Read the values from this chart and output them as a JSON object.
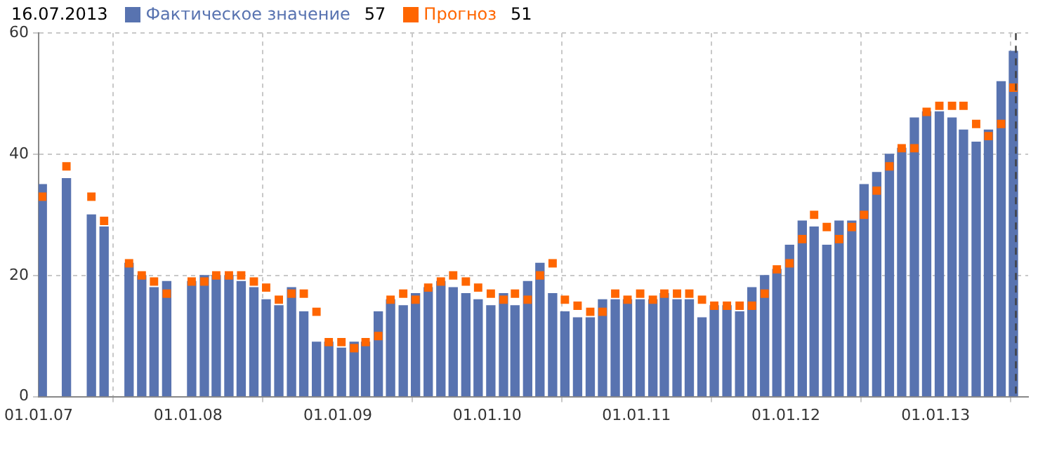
{
  "chart_data": {
    "type": "bar",
    "title": "16.07.2013",
    "x": [
      "2007-01-10",
      "2007-03-10",
      "2007-05-10",
      "2007-06-10",
      "2007-08-10",
      "2007-09-10",
      "2007-10-10",
      "2007-11-10",
      "2008-01-10",
      "2008-02-10",
      "2008-03-10",
      "2008-04-10",
      "2008-05-10",
      "2008-06-10",
      "2008-07-10",
      "2008-08-10",
      "2008-09-10",
      "2008-10-10",
      "2008-11-10",
      "2008-12-10",
      "2009-01-10",
      "2009-02-10",
      "2009-03-10",
      "2009-04-10",
      "2009-05-10",
      "2009-06-10",
      "2009-07-10",
      "2009-08-10",
      "2009-09-10",
      "2009-10-10",
      "2009-11-10",
      "2009-12-10",
      "2010-01-10",
      "2010-02-10",
      "2010-03-10",
      "2010-04-10",
      "2010-05-10",
      "2010-06-10",
      "2010-07-10",
      "2010-08-10",
      "2010-09-10",
      "2010-10-10",
      "2010-11-10",
      "2010-12-10",
      "2011-01-10",
      "2011-02-10",
      "2011-03-10",
      "2011-04-10",
      "2011-05-10",
      "2011-06-10",
      "2011-07-10",
      "2011-08-10",
      "2011-09-10",
      "2011-10-10",
      "2011-11-10",
      "2011-12-10",
      "2012-01-10",
      "2012-02-10",
      "2012-03-10",
      "2012-04-10",
      "2012-05-10",
      "2012-06-10",
      "2012-07-10",
      "2012-08-10",
      "2012-09-10",
      "2012-10-10",
      "2012-11-10",
      "2012-12-10",
      "2013-01-10",
      "2013-02-10",
      "2013-03-10",
      "2013-04-10",
      "2013-05-10",
      "2013-06-10",
      "2013-07-10"
    ],
    "series": [
      {
        "name": "Фактическое значение",
        "color": "#5873b0",
        "values": [
          35,
          36,
          30,
          28,
          22,
          20,
          18,
          19,
          19,
          20,
          20,
          20,
          19,
          18,
          16,
          15,
          18,
          14,
          9,
          9,
          8,
          9,
          9,
          14,
          16,
          15,
          17,
          18,
          19,
          18,
          17,
          16,
          15,
          17,
          15,
          19,
          22,
          17,
          14,
          13,
          13,
          16,
          16,
          16,
          16,
          16,
          17,
          16,
          16,
          13,
          15,
          15,
          14,
          18,
          20,
          21,
          25,
          29,
          28,
          25,
          29,
          29,
          35,
          37,
          40,
          41,
          46,
          47,
          47,
          46,
          44,
          42,
          44,
          52,
          57
        ]
      },
      {
        "name": "Прогноз",
        "type": "scatter",
        "marker": "square",
        "color": "#ff6600",
        "values": [
          33,
          38,
          33,
          29,
          22,
          20,
          19,
          17,
          19,
          19,
          20,
          20,
          20,
          19,
          18,
          16,
          17,
          17,
          14,
          9,
          9,
          8,
          9,
          10,
          16,
          17,
          16,
          18,
          19,
          20,
          19,
          18,
          17,
          16,
          17,
          16,
          20,
          22,
          16,
          15,
          14,
          14,
          17,
          16,
          17,
          16,
          17,
          17,
          17,
          16,
          15,
          15,
          15,
          15,
          17,
          21,
          22,
          26,
          30,
          28,
          26,
          28,
          30,
          34,
          38,
          41,
          41,
          47,
          48,
          48,
          48,
          45,
          43,
          45,
          51
        ]
      }
    ],
    "xlim": [
      "2007-01-01",
      "2013-08-15"
    ],
    "xticks": [
      {
        "value": "2007-01-01",
        "label": "01.01.07"
      },
      {
        "value": "2008-01-01",
        "label": "01.01.08"
      },
      {
        "value": "2009-01-01",
        "label": "01.01.09"
      },
      {
        "value": "2010-01-01",
        "label": "01.01.10"
      },
      {
        "value": "2011-01-01",
        "label": "01.01.11"
      },
      {
        "value": "2012-01-01",
        "label": "01.01.12"
      },
      {
        "value": "2013-01-01",
        "label": "01.01.13"
      }
    ],
    "ylim": [
      0,
      60
    ],
    "yticks": [
      0,
      20,
      40,
      60
    ],
    "ref_lines": [
      {
        "axis": "x",
        "value": "2013-07-16",
        "color": "#404040",
        "line_style": "dashed"
      }
    ],
    "annotations": [
      "57",
      "51"
    ],
    "grid": true,
    "legend": "top left"
  }
}
